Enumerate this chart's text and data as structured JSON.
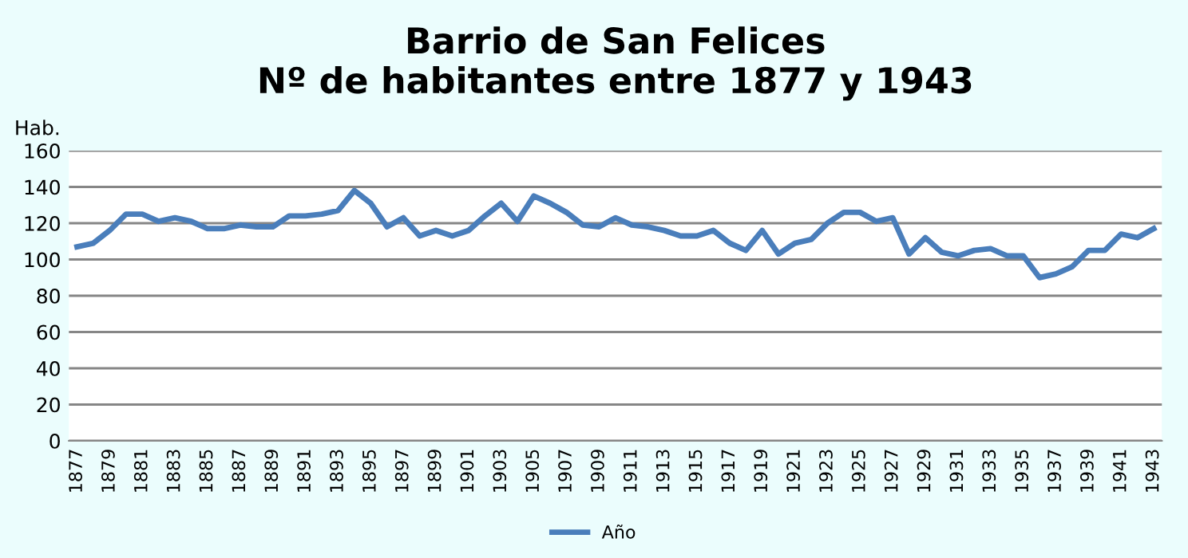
{
  "chart_data": {
    "type": "line",
    "title": "Barrio de San Felices\nNº de habitantes entre 1877 y 1943",
    "ylabel": "Hab.",
    "categories": [
      "1877",
      null,
      "1879",
      null,
      "1881",
      null,
      "1883",
      null,
      "1885",
      null,
      "1887",
      null,
      "1889",
      null,
      "1891",
      null,
      "1893",
      null,
      "1895",
      null,
      "1897",
      null,
      "1899",
      null,
      "1901",
      null,
      "1903",
      null,
      "1905",
      null,
      "1907",
      null,
      "1909",
      null,
      "1911",
      null,
      "1913",
      null,
      "1915",
      null,
      "1917",
      null,
      "1919",
      null,
      "1921",
      null,
      "1923",
      null,
      "1925",
      null,
      "1927",
      null,
      "1929",
      null,
      "1931",
      null,
      "1933",
      null,
      "1935",
      null,
      "1937",
      null,
      "1939",
      null,
      "1941",
      null,
      "1943"
    ],
    "series": [
      {
        "name": "Año",
        "color": "#4a7ebb",
        "values": [
          107,
          109,
          116,
          125,
          125,
          121,
          123,
          121,
          117,
          117,
          119,
          118,
          118,
          124,
          124,
          125,
          127,
          138,
          131,
          118,
          123,
          113,
          116,
          113,
          116,
          124,
          131,
          121,
          135,
          131,
          126,
          119,
          118,
          123,
          119,
          118,
          116,
          113,
          113,
          116,
          109,
          105,
          116,
          103,
          109,
          111,
          120,
          126,
          126,
          121,
          123,
          103,
          112,
          104,
          102,
          105,
          106,
          102,
          102,
          90,
          92,
          96,
          105,
          105,
          114,
          112,
          117
        ]
      }
    ],
    "ylim": [
      0,
      160
    ],
    "yticks": [
      0,
      20,
      40,
      60,
      80,
      100,
      120,
      140,
      160
    ],
    "grid": "y",
    "legend": "bottom",
    "marker": "none",
    "line_style": "solid"
  }
}
